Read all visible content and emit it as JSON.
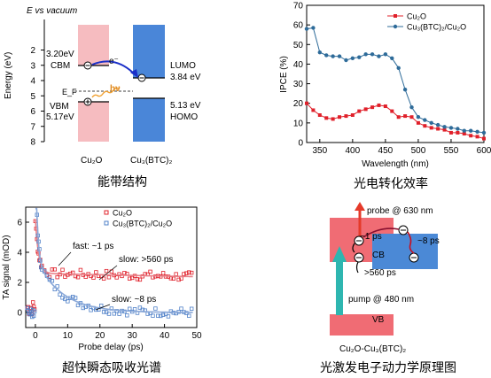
{
  "panels": {
    "energy": {
      "caption": "能带结构",
      "top_label": "E vs vacuum",
      "ylabel": "Energy (eV)",
      "yticks": [
        "2",
        "3",
        "4",
        "5",
        "6",
        "7",
        "8"
      ],
      "left": {
        "name": "Cu₂O",
        "cbm_value": "3.20eV",
        "cbm": "CBM",
        "vbm": "VBM",
        "vbm_value": "5.17eV"
      },
      "right": {
        "name": "Cu₃(BTC)₂",
        "lumo": "LUMO",
        "lumo_value": "3.84 eV",
        "homo_value": "5.13 eV",
        "homo": "HOMO"
      },
      "ef": "E_F",
      "electron": "e⁻",
      "hv": "hν",
      "colors": {
        "cu2o": "#f28e96",
        "mof": "#4a86d8"
      }
    },
    "ipce": {
      "caption": "光电转化效率",
      "legend": [
        "Cu₂O",
        "Cu₃(BTC)₂/Cu₂O"
      ],
      "colors": [
        "#e0202a",
        "#2e6b99"
      ]
    },
    "ta": {
      "caption": "超快瞬态吸收光谱",
      "legend": [
        "Cu₂O",
        "Cu₃(BTC)₂/Cu₂O"
      ],
      "colors": [
        "#e0202a",
        "#4f80c8"
      ],
      "annotations": [
        "fast: ~1 ps",
        "slow: >560 ps",
        "slow: ~8 ps"
      ]
    },
    "scheme": {
      "caption": "光激发电子动力学原理图",
      "probe": "probe @ 630 nm",
      "pump": "pump @ 480 nm",
      "t1": "~1 ps",
      "t2": "~8 ps",
      "t3": ">560 ps",
      "cb": "CB",
      "vb": "VB",
      "label": "Cu₂O-Cu₃(BTC)₂"
    }
  },
  "chart_data": [
    {
      "type": "diagram",
      "title": "",
      "ylabel": "Energy (eV)",
      "ylim": [
        8,
        0
      ],
      "levels": {
        "Cu2O_CBM": 3.2,
        "Cu2O_VBM": 5.17,
        "Cu3BTC2_LUMO": 3.84,
        "Cu3BTC2_HOMO": 5.13
      }
    },
    {
      "type": "line",
      "xlabel": "Wavelength (nm)",
      "ylabel": "IPCE (%)",
      "xlim": [
        330,
        600
      ],
      "ylim": [
        0,
        70
      ],
      "xticks": [
        350,
        400,
        450,
        500,
        550,
        600
      ],
      "yticks": [
        0,
        10,
        20,
        30,
        40,
        50,
        60,
        70
      ],
      "series": [
        {
          "name": "Cu₂O",
          "x": [
            330,
            340,
            350,
            360,
            370,
            380,
            390,
            400,
            410,
            420,
            430,
            440,
            450,
            460,
            470,
            480,
            490,
            500,
            510,
            520,
            530,
            540,
            550,
            560,
            570,
            580,
            590,
            600
          ],
          "values": [
            20,
            16.5,
            14,
            12.5,
            12,
            13,
            13.5,
            14,
            16,
            17,
            18,
            19,
            18.5,
            16,
            13,
            13.5,
            13,
            10,
            8.5,
            7.5,
            7,
            6.5,
            5,
            5,
            4.5,
            3.5,
            3,
            2
          ]
        },
        {
          "name": "Cu₃(BTC)₂/Cu₂O",
          "x": [
            330,
            340,
            350,
            360,
            370,
            380,
            390,
            400,
            410,
            420,
            430,
            440,
            450,
            460,
            470,
            480,
            490,
            500,
            510,
            520,
            530,
            540,
            550,
            560,
            570,
            580,
            590,
            600
          ],
          "values": [
            58,
            58.5,
            46,
            44.5,
            44,
            44,
            42,
            43,
            43.5,
            45,
            45,
            44,
            45,
            43,
            38,
            27,
            18,
            13,
            11.5,
            10,
            9,
            8,
            7.5,
            7,
            6,
            6,
            5.5,
            5
          ]
        }
      ]
    },
    {
      "type": "scatter",
      "xlabel": "Probe delay (ps)",
      "ylabel": "TA signal (mOD)",
      "xlim": [
        -3,
        50
      ],
      "ylim": [
        -1,
        7
      ],
      "xticks": [
        0,
        10,
        20,
        30,
        40,
        50
      ],
      "yticks": [
        0,
        2,
        4,
        6
      ],
      "series": [
        {
          "name": "Cu₂O",
          "fit": {
            "a1": 3.6,
            "t1": 1.0,
            "a2": 2.6,
            "t2": 560
          }
        },
        {
          "name": "Cu₃(BTC)₂/Cu₂O",
          "fit": {
            "a1": 7.2,
            "t1": 0.6,
            "a2": 3.6,
            "t2": 8
          }
        }
      ]
    }
  ]
}
